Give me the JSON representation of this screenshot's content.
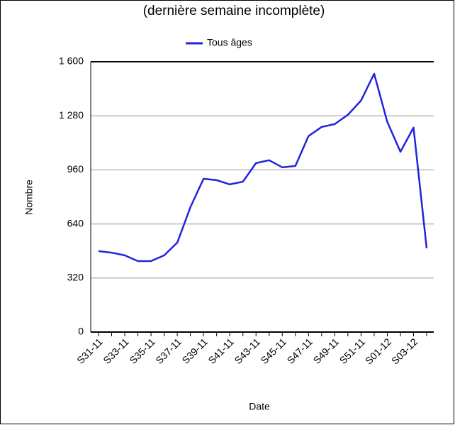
{
  "chart_data": {
    "type": "line",
    "title": "(dernière semaine incomplète)",
    "x_label": "Date",
    "y_label": "Nombre",
    "categories": [
      "S31-11",
      null,
      "S33-11",
      null,
      "S35-11",
      null,
      "S37-11",
      null,
      "S39-11",
      null,
      "S41-11",
      null,
      "S43-11",
      null,
      "S45-11",
      null,
      "S47-11",
      null,
      "S49-11",
      null,
      "S51-11",
      null,
      "S01-12",
      null,
      "S03-12",
      null
    ],
    "series": [
      {
        "name": "Tous âges",
        "color": "#2222dd",
        "values": [
          479,
          470,
          454,
          420,
          420,
          454,
          529,
          739,
          907,
          899,
          874,
          890,
          1000,
          1017,
          975,
          983,
          1160,
          1214,
          1231,
          1286,
          1370,
          1529,
          1244,
          1067,
          1210,
          496
        ]
      }
    ],
    "ylim": [
      0,
      1600
    ],
    "yticks": [
      0,
      320,
      640,
      960,
      {
        "value": 1280,
        "label": "1 280"
      },
      {
        "value": 1600,
        "label": "1 600"
      }
    ],
    "grid": true,
    "legend": "top"
  }
}
